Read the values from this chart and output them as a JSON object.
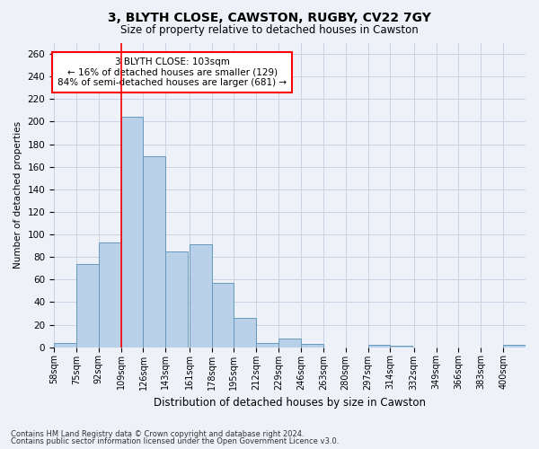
{
  "title1": "3, BLYTH CLOSE, CAWSTON, RUGBY, CV22 7GY",
  "title2": "Size of property relative to detached houses in Cawston",
  "xlabel": "Distribution of detached houses by size in Cawston",
  "ylabel": "Number of detached properties",
  "bar_color": "#b8d0e8",
  "bar_edge_color": "#6699bb",
  "vline_color": "red",
  "categories": [
    "58sqm",
    "75sqm",
    "92sqm",
    "109sqm",
    "126sqm",
    "143sqm",
    "161sqm",
    "178sqm",
    "195sqm",
    "212sqm",
    "229sqm",
    "246sqm",
    "263sqm",
    "280sqm",
    "297sqm",
    "314sqm",
    "332sqm",
    "349sqm",
    "366sqm",
    "383sqm",
    "400sqm"
  ],
  "bin_edges": [
    58,
    75,
    92,
    109,
    126,
    143,
    161,
    178,
    195,
    212,
    229,
    246,
    263,
    280,
    297,
    314,
    332,
    349,
    366,
    383,
    400
  ],
  "bin_width": 17,
  "values": [
    4,
    74,
    93,
    204,
    169,
    85,
    91,
    57,
    26,
    4,
    8,
    3,
    0,
    0,
    2,
    1,
    0,
    0,
    0,
    0,
    2
  ],
  "ylim": [
    0,
    270
  ],
  "yticks": [
    0,
    20,
    40,
    60,
    80,
    100,
    120,
    140,
    160,
    180,
    200,
    220,
    240,
    260
  ],
  "annotation_text": "3 BLYTH CLOSE: 103sqm\n← 16% of detached houses are smaller (129)\n84% of semi-detached houses are larger (681) →",
  "annotation_box_color": "white",
  "annotation_box_edge": "red",
  "footer1": "Contains HM Land Registry data © Crown copyright and database right 2024.",
  "footer2": "Contains public sector information licensed under the Open Government Licence v3.0.",
  "grid_color": "#c8d4e4",
  "background_color": "#eef2f8"
}
